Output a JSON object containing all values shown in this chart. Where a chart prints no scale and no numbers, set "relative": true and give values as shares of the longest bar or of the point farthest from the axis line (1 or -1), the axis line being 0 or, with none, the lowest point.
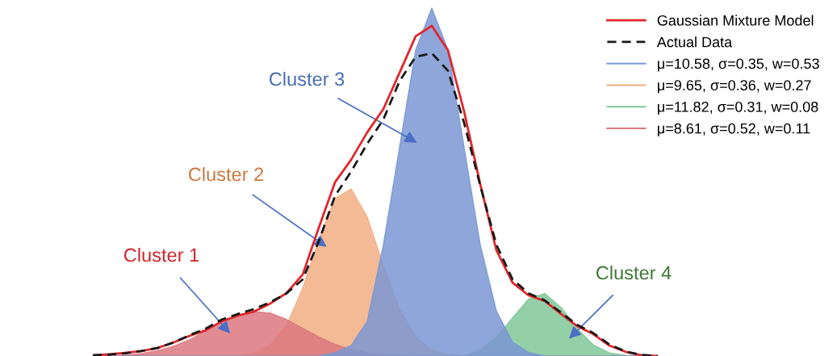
{
  "chart_data": {
    "type": "area",
    "relative": true,
    "legend": "top right",
    "categories": [
      null,
      null,
      null,
      null,
      null,
      null,
      null,
      null,
      null,
      null,
      null,
      null,
      null,
      null,
      null,
      null,
      null,
      null,
      null,
      null,
      null,
      null,
      null,
      null,
      null,
      null,
      null,
      null,
      null,
      null,
      null,
      null,
      null,
      null,
      null,
      null
    ],
    "series": [
      {
        "name": "Gaussian Mixture Model",
        "type": "line",
        "line_style": "solid",
        "color": "#e0262c",
        "values": [
          0.002,
          0.005,
          0.009,
          0.014,
          0.023,
          0.039,
          0.058,
          0.074,
          0.1,
          0.116,
          0.128,
          0.151,
          0.181,
          0.234,
          0.369,
          0.499,
          0.564,
          0.643,
          0.71,
          0.814,
          0.919,
          0.949,
          0.879,
          0.703,
          0.494,
          0.304,
          0.211,
          0.174,
          0.158,
          0.121,
          0.086,
          0.063,
          0.03,
          0.012,
          0.002,
          0
        ]
      },
      {
        "name": "Actual Data",
        "type": "line",
        "line_style": "dashed",
        "color": "#1a1a1a",
        "values": [
          0.002,
          0.004,
          0.008,
          0.014,
          0.023,
          0.039,
          0.06,
          0.079,
          0.105,
          0.121,
          0.135,
          0.155,
          0.18,
          0.22,
          0.33,
          0.46,
          0.53,
          0.61,
          0.68,
          0.79,
          0.86,
          0.87,
          0.82,
          0.67,
          0.49,
          0.32,
          0.22,
          0.18,
          0.16,
          0.125,
          0.09,
          0.066,
          0.033,
          0.013,
          0.003,
          0
        ]
      },
      {
        "name": "μ=10.58, σ=0.35, w=0.53",
        "color": "#7a97d2",
        "values": [
          0,
          0,
          0,
          0,
          0,
          0,
          0,
          0,
          0,
          0,
          0,
          0,
          0,
          0,
          0,
          0.01,
          0.03,
          0.1,
          0.32,
          0.6,
          0.88,
          1.0,
          0.88,
          0.6,
          0.32,
          0.13,
          0.04,
          0.01,
          0,
          0,
          0,
          0,
          0,
          0,
          0,
          0
        ]
      },
      {
        "name": "μ=9.65, σ=0.36, w=0.27",
        "color": "#f2ae82",
        "values": [
          0,
          0,
          0,
          0,
          0,
          0,
          0,
          0,
          0,
          0,
          0.009,
          0.032,
          0.088,
          0.195,
          0.335,
          0.453,
          0.48,
          0.4,
          0.26,
          0.135,
          0.055,
          0.017,
          0.005,
          0,
          0,
          0,
          0,
          0,
          0,
          0,
          0,
          0,
          0,
          0,
          0,
          0
        ]
      },
      {
        "name": "μ=11.82, σ=0.31, w=0.08",
        "color": "#80c898",
        "values": [
          0,
          0,
          0,
          0,
          0,
          0,
          0,
          0,
          0,
          0,
          0,
          0,
          0,
          0,
          0,
          0,
          0,
          0,
          0,
          0,
          0,
          0,
          0,
          0,
          0.018,
          0.053,
          0.11,
          0.164,
          0.18,
          0.14,
          0.079,
          0.032,
          0.009,
          0.002,
          0,
          0
        ]
      },
      {
        "name": "μ=8.61, σ=0.52, w=0.11",
        "color": "#dc7880",
        "values": [
          0,
          0.001,
          0.003,
          0.007,
          0.015,
          0.028,
          0.047,
          0.072,
          0.098,
          0.119,
          0.128,
          0.123,
          0.105,
          0.08,
          0.055,
          0.034,
          0.018,
          0.009,
          0.003,
          0.001,
          0,
          0,
          0,
          0,
          0,
          0,
          0,
          0,
          0,
          0,
          0,
          0,
          0,
          0,
          0,
          0
        ]
      }
    ],
    "annotations": [
      "Cluster 1",
      "Cluster 2",
      "Cluster 3",
      "Cluster 4"
    ]
  }
}
